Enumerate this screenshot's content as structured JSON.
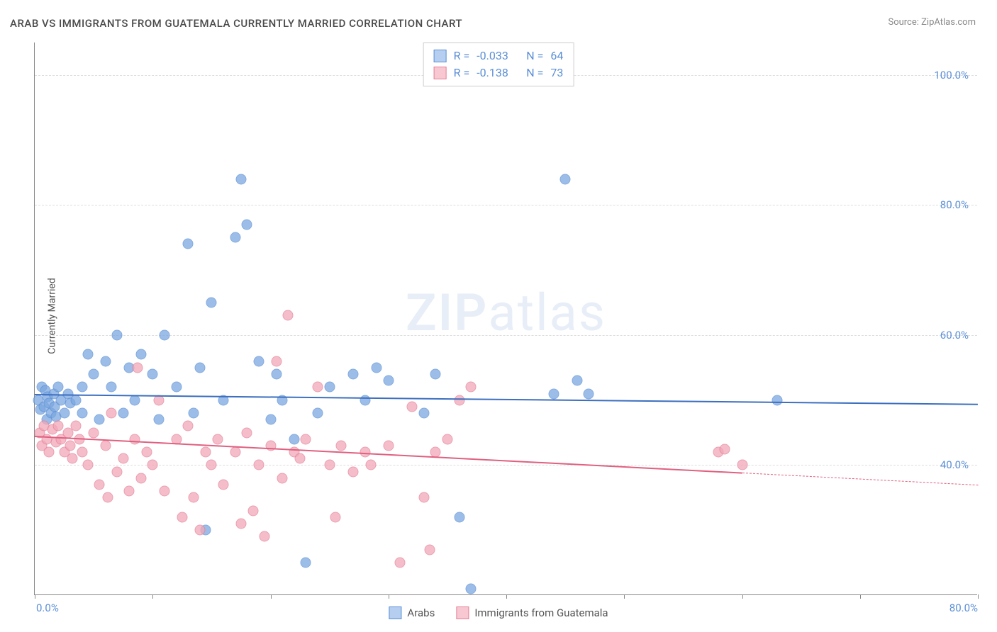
{
  "title": "ARAB VS IMMIGRANTS FROM GUATEMALA CURRENTLY MARRIED CORRELATION CHART",
  "source_prefix": "Source: ",
  "source_name": "ZipAtlas.com",
  "ylabel": "Currently Married",
  "watermark_bold": "ZIP",
  "watermark_light": "atlas",
  "chart": {
    "type": "scatter",
    "xlim": [
      0,
      80
    ],
    "ylim": [
      20,
      105
    ],
    "xticks": [
      0,
      10,
      20,
      30,
      40,
      50,
      60,
      70,
      80
    ],
    "xtick_labels_shown": {
      "0": "0.0%",
      "80": "80.0%"
    },
    "yticks": [
      40,
      60,
      80,
      100
    ],
    "ytick_labels": {
      "40": "40.0%",
      "60": "60.0%",
      "80": "80.0%",
      "100": "100.0%"
    },
    "background_color": "#ffffff",
    "grid_color": "#dddddd",
    "axis_color": "#888888",
    "ytick_label_color": "#5b8fd6",
    "xtick_label_color": "#5b8fd6",
    "watermark_color": "#e8eef7",
    "marker_radius": 7.5,
    "marker_fill_opacity": 0.35,
    "series": [
      {
        "name": "Arabs",
        "fill": "#7ba7e0",
        "stroke": "#5b8fd6",
        "trend_color": "#3c6fc0",
        "r": -0.033,
        "n": 64,
        "trend": {
          "x1": 0,
          "y1": 51.0,
          "x2": 80,
          "y2": 49.5,
          "dashed_from_x": null
        },
        "points": [
          [
            0.3,
            50.0
          ],
          [
            0.5,
            48.5
          ],
          [
            0.6,
            52.0
          ],
          [
            0.8,
            49.0
          ],
          [
            0.9,
            51.5
          ],
          [
            1.0,
            47.0
          ],
          [
            1.1,
            50.5
          ],
          [
            1.2,
            49.5
          ],
          [
            1.4,
            48.0
          ],
          [
            1.6,
            51.0
          ],
          [
            1.7,
            49.0
          ],
          [
            1.8,
            47.5
          ],
          [
            2.0,
            52.0
          ],
          [
            2.2,
            50.0
          ],
          [
            2.5,
            48.0
          ],
          [
            2.8,
            51.0
          ],
          [
            3.0,
            49.5
          ],
          [
            3.5,
            50.0
          ],
          [
            4.0,
            52.0
          ],
          [
            4.0,
            48.0
          ],
          [
            4.5,
            57.0
          ],
          [
            5.0,
            54.0
          ],
          [
            5.5,
            47.0
          ],
          [
            6.0,
            56.0
          ],
          [
            6.5,
            52.0
          ],
          [
            7.0,
            60.0
          ],
          [
            7.5,
            48.0
          ],
          [
            8.0,
            55.0
          ],
          [
            8.5,
            50.0
          ],
          [
            9.0,
            57.0
          ],
          [
            10.0,
            54.0
          ],
          [
            10.5,
            47.0
          ],
          [
            11.0,
            60.0
          ],
          [
            12.0,
            52.0
          ],
          [
            13.0,
            74.0
          ],
          [
            13.5,
            48.0
          ],
          [
            14.0,
            55.0
          ],
          [
            14.5,
            30.0
          ],
          [
            15.0,
            65.0
          ],
          [
            16.0,
            50.0
          ],
          [
            17.0,
            75.0
          ],
          [
            17.5,
            84.0
          ],
          [
            18.0,
            77.0
          ],
          [
            19.0,
            56.0
          ],
          [
            20.0,
            47.0
          ],
          [
            20.5,
            54.0
          ],
          [
            21.0,
            50.0
          ],
          [
            22.0,
            44.0
          ],
          [
            23.0,
            25.0
          ],
          [
            24.0,
            48.0
          ],
          [
            25.0,
            52.0
          ],
          [
            27.0,
            54.0
          ],
          [
            28.0,
            50.0
          ],
          [
            29.0,
            55.0
          ],
          [
            30.0,
            53.0
          ],
          [
            33.0,
            48.0
          ],
          [
            34.0,
            54.0
          ],
          [
            36.0,
            32.0
          ],
          [
            37.0,
            21.0
          ],
          [
            44.0,
            51.0
          ],
          [
            45.0,
            84.0
          ],
          [
            46.0,
            53.0
          ],
          [
            47.0,
            51.0
          ],
          [
            63.0,
            50.0
          ]
        ]
      },
      {
        "name": "Immigrants from Guatemala",
        "fill": "#f2a8b8",
        "stroke": "#e57f97",
        "trend_color": "#e06080",
        "r": -0.138,
        "n": 73,
        "trend": {
          "x1": 0,
          "y1": 44.5,
          "x2": 80,
          "y2": 37.0,
          "dashed_from_x": 60
        },
        "points": [
          [
            0.4,
            45.0
          ],
          [
            0.6,
            43.0
          ],
          [
            0.8,
            46.0
          ],
          [
            1.0,
            44.0
          ],
          [
            1.2,
            42.0
          ],
          [
            1.5,
            45.5
          ],
          [
            1.8,
            43.5
          ],
          [
            2.0,
            46.0
          ],
          [
            2.2,
            44.0
          ],
          [
            2.5,
            42.0
          ],
          [
            2.8,
            45.0
          ],
          [
            3.0,
            43.0
          ],
          [
            3.2,
            41.0
          ],
          [
            3.5,
            46.0
          ],
          [
            3.8,
            44.0
          ],
          [
            4.0,
            42.0
          ],
          [
            4.5,
            40.0
          ],
          [
            5.0,
            45.0
          ],
          [
            5.5,
            37.0
          ],
          [
            6.0,
            43.0
          ],
          [
            6.2,
            35.0
          ],
          [
            6.5,
            48.0
          ],
          [
            7.0,
            39.0
          ],
          [
            7.5,
            41.0
          ],
          [
            8.0,
            36.0
          ],
          [
            8.5,
            44.0
          ],
          [
            8.7,
            55.0
          ],
          [
            9.0,
            38.0
          ],
          [
            9.5,
            42.0
          ],
          [
            10.0,
            40.0
          ],
          [
            10.5,
            50.0
          ],
          [
            11.0,
            36.0
          ],
          [
            12.0,
            44.0
          ],
          [
            12.5,
            32.0
          ],
          [
            13.0,
            46.0
          ],
          [
            13.5,
            35.0
          ],
          [
            14.0,
            30.0
          ],
          [
            14.5,
            42.0
          ],
          [
            15.0,
            40.0
          ],
          [
            15.5,
            44.0
          ],
          [
            16.0,
            37.0
          ],
          [
            17.0,
            42.0
          ],
          [
            17.5,
            31.0
          ],
          [
            18.0,
            45.0
          ],
          [
            18.5,
            33.0
          ],
          [
            19.0,
            40.0
          ],
          [
            19.5,
            29.0
          ],
          [
            20.0,
            43.0
          ],
          [
            20.5,
            56.0
          ],
          [
            21.0,
            38.0
          ],
          [
            21.5,
            63.0
          ],
          [
            22.0,
            42.0
          ],
          [
            22.5,
            41.0
          ],
          [
            23.0,
            44.0
          ],
          [
            24.0,
            52.0
          ],
          [
            25.0,
            40.0
          ],
          [
            25.5,
            32.0
          ],
          [
            26.0,
            43.0
          ],
          [
            27.0,
            39.0
          ],
          [
            28.0,
            42.0
          ],
          [
            28.5,
            40.0
          ],
          [
            30.0,
            43.0
          ],
          [
            31.0,
            25.0
          ],
          [
            32.0,
            49.0
          ],
          [
            33.0,
            35.0
          ],
          [
            33.5,
            27.0
          ],
          [
            34.0,
            42.0
          ],
          [
            35.0,
            44.0
          ],
          [
            36.0,
            50.0
          ],
          [
            37.0,
            52.0
          ],
          [
            58.0,
            42.0
          ],
          [
            58.5,
            42.5
          ],
          [
            60.0,
            40.0
          ]
        ]
      }
    ],
    "legend_top": {
      "border_color": "#cccccc",
      "text_color": "#5b8fd6",
      "rows": [
        {
          "swatch_fill": "#b6cef0",
          "swatch_stroke": "#5b8fd6",
          "r_label": "R =",
          "r_val": "-0.033",
          "n_label": "N =",
          "n_val": "64"
        },
        {
          "swatch_fill": "#f8c8d2",
          "swatch_stroke": "#e57f97",
          "r_label": "R =",
          "r_val": "-0.138",
          "n_label": "N =",
          "n_val": "73"
        }
      ]
    },
    "legend_bottom": {
      "items": [
        {
          "swatch_fill": "#b6cef0",
          "swatch_stroke": "#5b8fd6",
          "label": "Arabs"
        },
        {
          "swatch_fill": "#f8c8d2",
          "swatch_stroke": "#e57f97",
          "label": "Immigrants from Guatemala"
        }
      ]
    }
  }
}
